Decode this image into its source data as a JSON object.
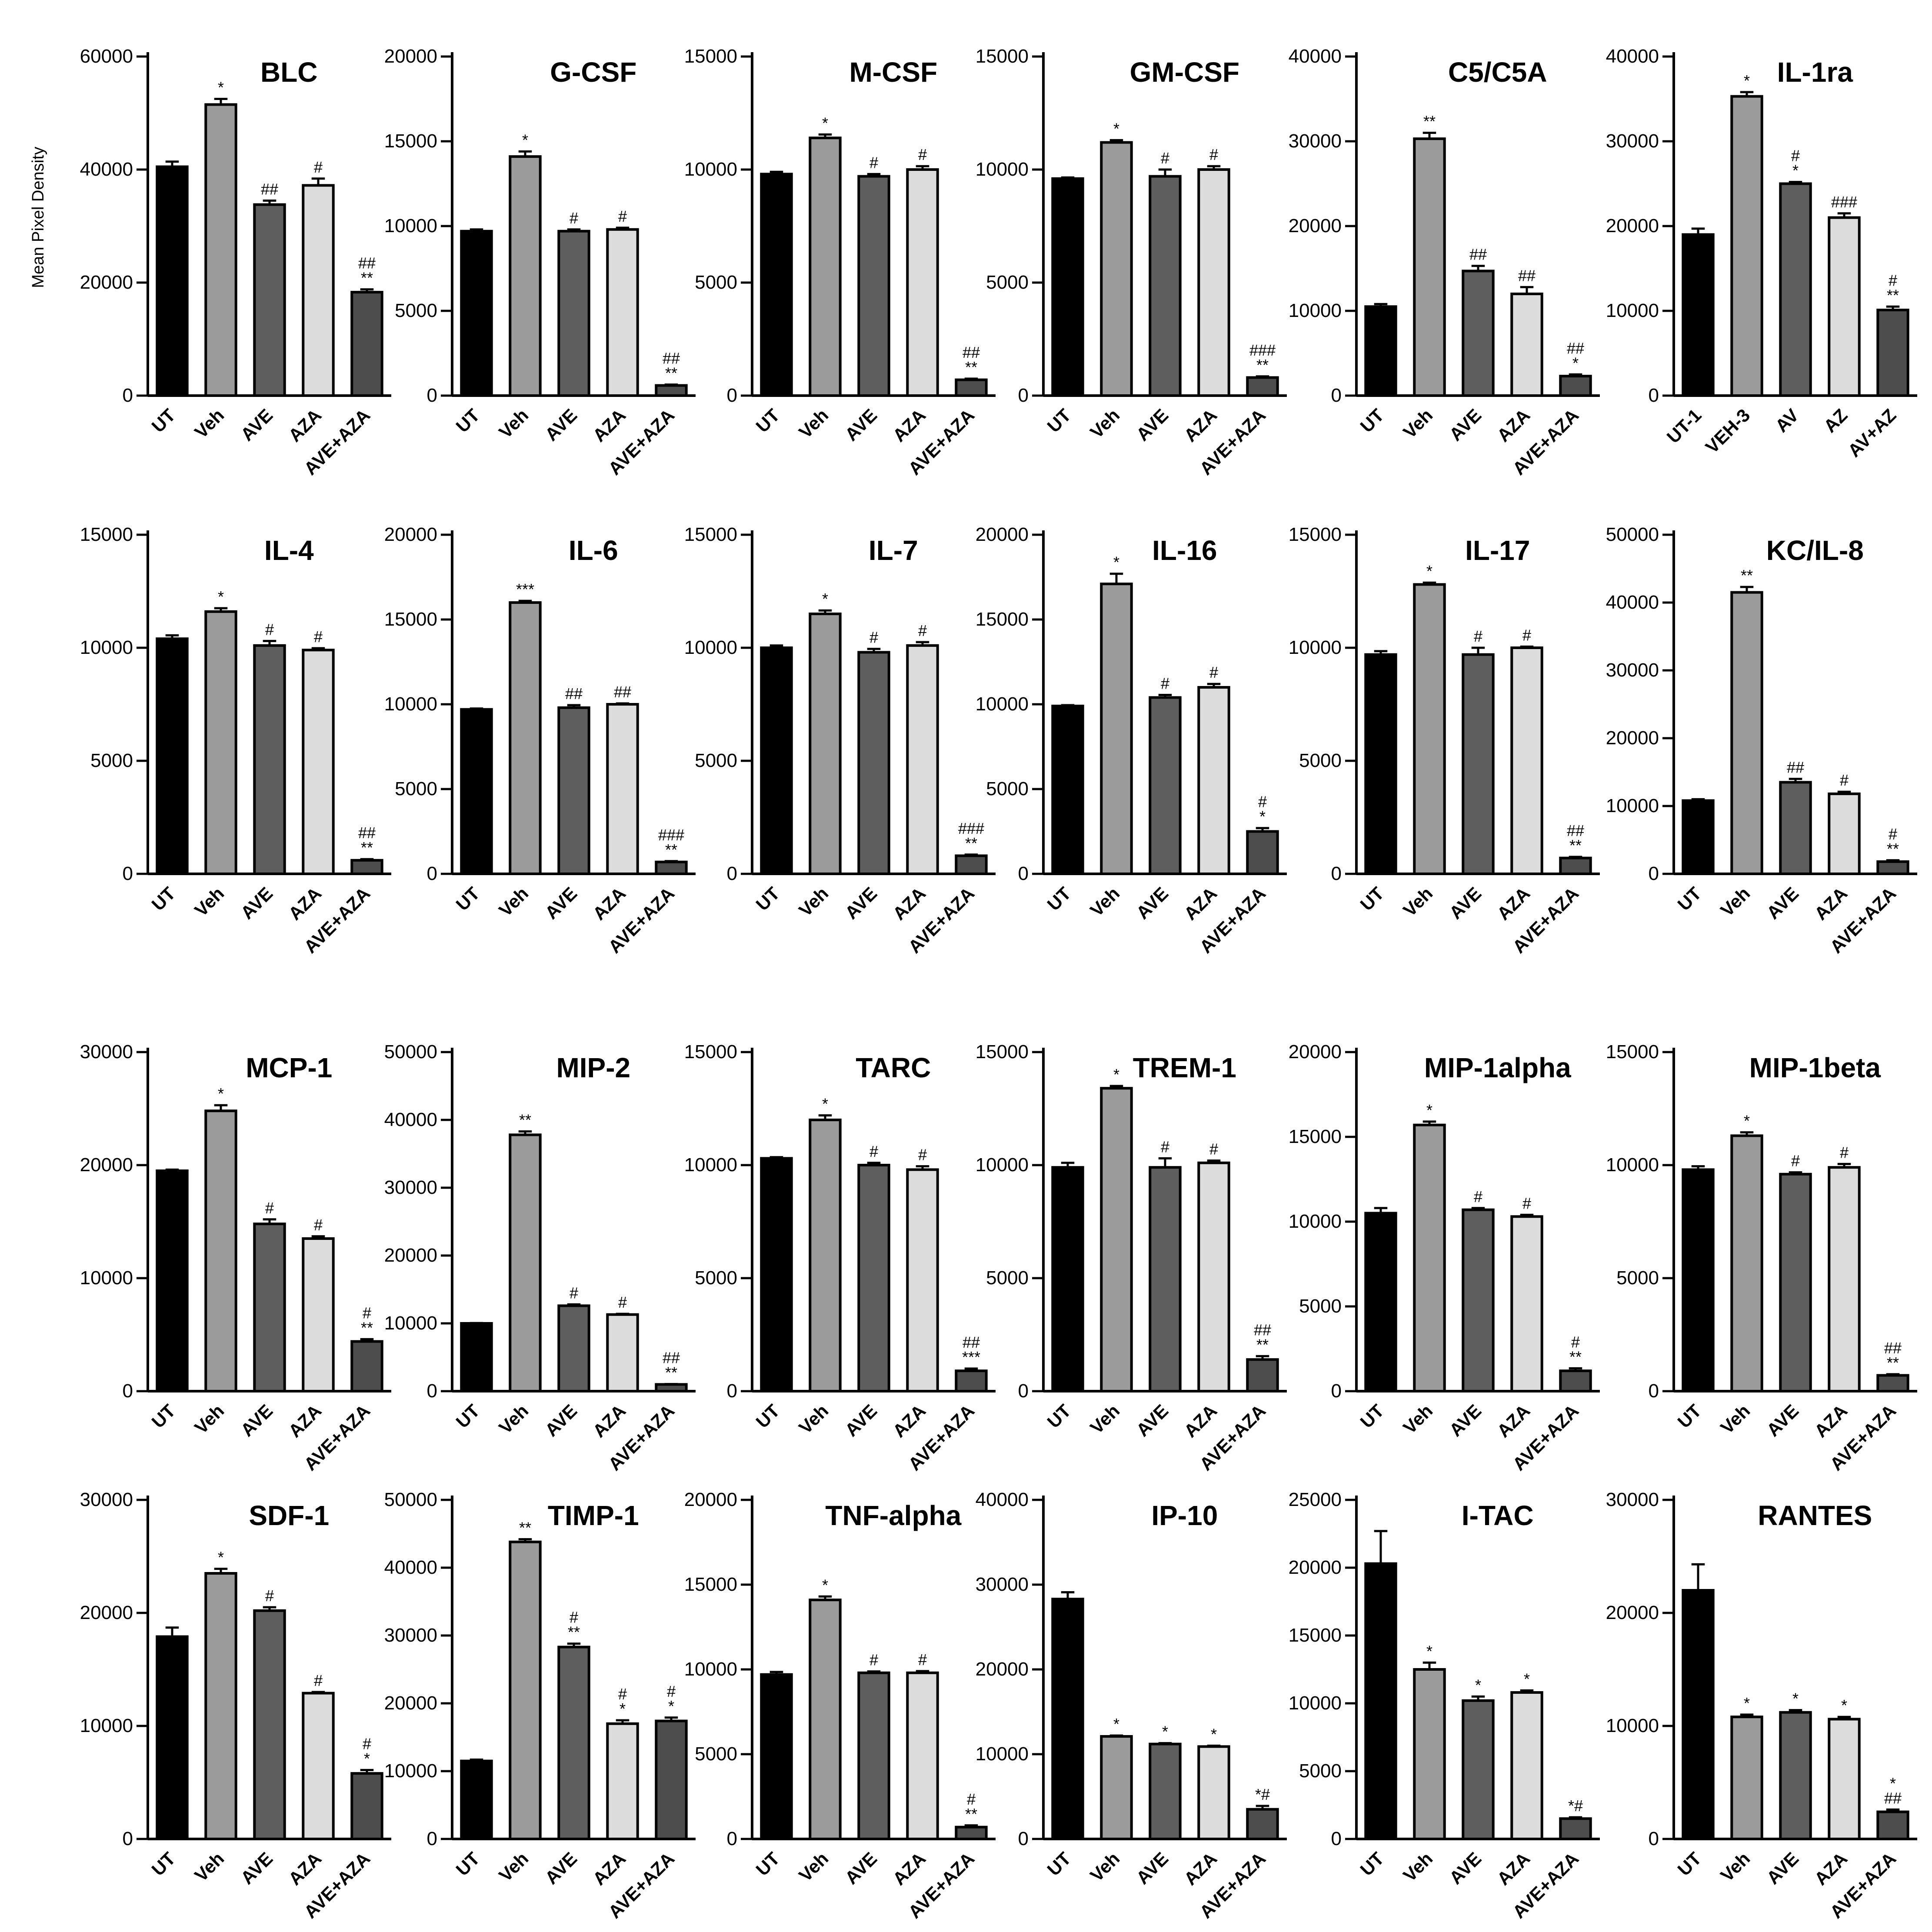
{
  "figure": {
    "ylabel": "Mean Pixel Density",
    "colors": {
      "bar_fills": [
        "#000000",
        "#9b9b9b",
        "#5e5e5e",
        "#dcdcdc",
        "#4d4d4d"
      ],
      "axis": "#000000"
    }
  },
  "chart_data": [
    {
      "type": "bar",
      "title": "BLC",
      "categories": [
        "UT",
        "Veh",
        "AVE",
        "AZA",
        "AVE+AZA"
      ],
      "values": [
        40500,
        51500,
        33800,
        37200,
        18300
      ],
      "errors": [
        900,
        1000,
        700,
        1200,
        500
      ],
      "sig": [
        "",
        "*",
        "##",
        "#",
        "##\n**"
      ],
      "yticks": [
        "0",
        "20000",
        "40000",
        "60000"
      ],
      "ylim": [
        0,
        60000
      ]
    },
    {
      "type": "bar",
      "title": "G-CSF",
      "categories": [
        "UT",
        "Veh",
        "AVE",
        "AZA",
        "AVE+AZA"
      ],
      "values": [
        9700,
        14100,
        9700,
        9800,
        600
      ],
      "errors": [
        100,
        300,
        100,
        100,
        50
      ],
      "sig": [
        "",
        "*",
        "#",
        "#",
        "##\n**"
      ],
      "yticks": [
        "0",
        "5000",
        "10000",
        "15000",
        "20000"
      ],
      "ylim": [
        0,
        20000
      ]
    },
    {
      "type": "bar",
      "title": "M-CSF",
      "categories": [
        "UT",
        "Veh",
        "AVE",
        "AZA",
        "AVE+AZA"
      ],
      "values": [
        9800,
        11400,
        9700,
        10000,
        700
      ],
      "errors": [
        100,
        150,
        100,
        150,
        50
      ],
      "sig": [
        "",
        "*",
        "#",
        "#",
        "##\n**"
      ],
      "yticks": [
        "0",
        "5000",
        "10000",
        "15000"
      ],
      "ylim": [
        0,
        15000
      ]
    },
    {
      "type": "bar",
      "title": "GM-CSF",
      "categories": [
        "UT",
        "Veh",
        "AVE",
        "AZA",
        "AVE+AZA"
      ],
      "values": [
        9600,
        11200,
        9700,
        10000,
        800
      ],
      "errors": [
        50,
        100,
        300,
        150,
        50
      ],
      "sig": [
        "",
        "*",
        "#",
        "#",
        "###\n**"
      ],
      "yticks": [
        "0",
        "5000",
        "10000",
        "15000"
      ],
      "ylim": [
        0,
        15000
      ]
    },
    {
      "type": "bar",
      "title": "C5/C5A",
      "categories": [
        "UT",
        "Veh",
        "AVE",
        "AZA",
        "AVE+AZA"
      ],
      "values": [
        10500,
        30300,
        14700,
        12000,
        2300
      ],
      "errors": [
        300,
        700,
        600,
        800,
        200
      ],
      "sig": [
        "",
        "**",
        "##",
        "##",
        "##\n*"
      ],
      "yticks": [
        "0",
        "10000",
        "20000",
        "30000",
        "40000"
      ],
      "ylim": [
        0,
        40000
      ]
    },
    {
      "type": "bar",
      "title": "IL-1ra",
      "categories": [
        "UT-1",
        "VEH-3",
        "AV",
        "AZ",
        "AV+AZ"
      ],
      "values": [
        19000,
        35300,
        25000,
        21000,
        10100
      ],
      "errors": [
        700,
        500,
        200,
        500,
        400
      ],
      "sig": [
        "",
        "*",
        "#\n*",
        "###",
        "#\n**"
      ],
      "yticks": [
        "0",
        "10000",
        "20000",
        "30000",
        "40000"
      ],
      "ylim": [
        0,
        40000
      ]
    },
    {
      "type": "bar",
      "title": "IL-4",
      "categories": [
        "UT",
        "Veh",
        "AVE",
        "AZA",
        "AVE+AZA"
      ],
      "values": [
        10400,
        11600,
        10100,
        9900,
        600
      ],
      "errors": [
        150,
        150,
        200,
        80,
        50
      ],
      "sig": [
        "",
        "*",
        "#",
        "#",
        "##\n**"
      ],
      "yticks": [
        "0",
        "5000",
        "10000",
        "15000"
      ],
      "ylim": [
        0,
        15000
      ]
    },
    {
      "type": "bar",
      "title": "IL-6",
      "categories": [
        "UT",
        "Veh",
        "AVE",
        "AZA",
        "AVE+AZA"
      ],
      "values": [
        9700,
        16000,
        9800,
        10000,
        700
      ],
      "errors": [
        50,
        100,
        150,
        50,
        50
      ],
      "sig": [
        "",
        "***",
        "##",
        "##",
        "###\n**"
      ],
      "yticks": [
        "0",
        "5000",
        "10000",
        "15000",
        "20000"
      ],
      "ylim": [
        0,
        20000
      ]
    },
    {
      "type": "bar",
      "title": "IL-7",
      "categories": [
        "UT",
        "Veh",
        "AVE",
        "AZA",
        "AVE+AZA"
      ],
      "values": [
        10000,
        11500,
        9800,
        10100,
        800
      ],
      "errors": [
        100,
        150,
        150,
        150,
        50
      ],
      "sig": [
        "",
        "*",
        "#",
        "#",
        "###\n**"
      ],
      "yticks": [
        "0",
        "5000",
        "10000",
        "15000"
      ],
      "ylim": [
        0,
        15000
      ]
    },
    {
      "type": "bar",
      "title": "IL-16",
      "categories": [
        "UT",
        "Veh",
        "AVE",
        "AZA",
        "AVE+AZA"
      ],
      "values": [
        9900,
        17100,
        10400,
        11000,
        2500
      ],
      "errors": [
        50,
        600,
        150,
        200,
        200
      ],
      "sig": [
        "",
        "*",
        "#",
        "#",
        "#\n*"
      ],
      "yticks": [
        "0",
        "5000",
        "10000",
        "15000",
        "20000"
      ],
      "ylim": [
        0,
        20000
      ]
    },
    {
      "type": "bar",
      "title": "IL-17",
      "categories": [
        "UT",
        "Veh",
        "AVE",
        "AZA",
        "AVE+AZA"
      ],
      "values": [
        9700,
        12800,
        9700,
        10000,
        700
      ],
      "errors": [
        150,
        80,
        300,
        50,
        50
      ],
      "sig": [
        "",
        "*",
        "#",
        "#",
        "##\n**"
      ],
      "yticks": [
        "0",
        "5000",
        "10000",
        "15000"
      ],
      "ylim": [
        0,
        15000
      ]
    },
    {
      "type": "bar",
      "title": "KC/IL-8",
      "categories": [
        "UT",
        "Veh",
        "AVE",
        "AZA",
        "AVE+AZA"
      ],
      "values": [
        10800,
        41500,
        13500,
        11800,
        1800
      ],
      "errors": [
        200,
        800,
        500,
        300,
        200
      ],
      "sig": [
        "",
        "**",
        "##",
        "#",
        "#\n**"
      ],
      "yticks": [
        "0",
        "10000",
        "20000",
        "30000",
        "40000",
        "50000"
      ],
      "ylim": [
        0,
        50000
      ]
    },
    {
      "type": "bar",
      "title": "MCP-1",
      "categories": [
        "UT",
        "Veh",
        "AVE",
        "AZA",
        "AVE+AZA"
      ],
      "values": [
        19500,
        24800,
        14800,
        13500,
        4400
      ],
      "errors": [
        100,
        500,
        400,
        200,
        200
      ],
      "sig": [
        "",
        "*",
        "#",
        "#",
        "#\n**"
      ],
      "yticks": [
        "0",
        "10000",
        "20000",
        "30000"
      ],
      "ylim": [
        0,
        30000
      ]
    },
    {
      "type": "bar",
      "title": "MIP-2",
      "categories": [
        "UT",
        "Veh",
        "AVE",
        "AZA",
        "AVE+AZA"
      ],
      "values": [
        10000,
        37800,
        12600,
        11300,
        1000
      ],
      "errors": [
        50,
        500,
        200,
        100,
        50
      ],
      "sig": [
        "",
        "**",
        "#",
        "#",
        "##\n**"
      ],
      "yticks": [
        "0",
        "10000",
        "20000",
        "30000",
        "40000",
        "50000"
      ],
      "ylim": [
        0,
        50000
      ]
    },
    {
      "type": "bar",
      "title": "TARC",
      "categories": [
        "UT",
        "Veh",
        "AVE",
        "AZA",
        "AVE+AZA"
      ],
      "values": [
        10300,
        12000,
        10000,
        9800,
        900
      ],
      "errors": [
        50,
        200,
        100,
        150,
        100
      ],
      "sig": [
        "",
        "*",
        "#",
        "#",
        "##\n***"
      ],
      "yticks": [
        "0",
        "5000",
        "10000",
        "15000"
      ],
      "ylim": [
        0,
        15000
      ]
    },
    {
      "type": "bar",
      "title": "TREM-1",
      "categories": [
        "UT",
        "Veh",
        "AVE",
        "AZA",
        "AVE+AZA"
      ],
      "values": [
        9900,
        13400,
        9900,
        10100,
        1400
      ],
      "errors": [
        200,
        100,
        400,
        100,
        150
      ],
      "sig": [
        "",
        "*",
        "#",
        "#",
        "##\n**"
      ],
      "yticks": [
        "0",
        "5000",
        "10000",
        "15000"
      ],
      "ylim": [
        0,
        15000
      ]
    },
    {
      "type": "bar",
      "title": "MIP-1alpha",
      "categories": [
        "UT",
        "Veh",
        "AVE",
        "AZA",
        "AVE+AZA"
      ],
      "values": [
        10500,
        15700,
        10700,
        10300,
        1200
      ],
      "errors": [
        300,
        200,
        100,
        100,
        150
      ],
      "sig": [
        "",
        "*",
        "#",
        "#",
        "#\n**"
      ],
      "yticks": [
        "0",
        "5000",
        "10000",
        "15000",
        "20000"
      ],
      "ylim": [
        0,
        20000
      ]
    },
    {
      "type": "bar",
      "title": "MIP-1beta",
      "categories": [
        "UT",
        "Veh",
        "AVE",
        "AZA",
        "AVE+AZA"
      ],
      "values": [
        9800,
        11300,
        9600,
        9900,
        700
      ],
      "errors": [
        150,
        150,
        80,
        150,
        50
      ],
      "sig": [
        "",
        "*",
        "#",
        "#",
        "##\n**"
      ],
      "yticks": [
        "0",
        "5000",
        "10000",
        "15000"
      ],
      "ylim": [
        0,
        15000
      ]
    },
    {
      "type": "bar",
      "title": "SDF-1",
      "categories": [
        "UT",
        "Veh",
        "AVE",
        "AZA",
        "AVE+AZA"
      ],
      "values": [
        17900,
        23500,
        20200,
        12900,
        5800
      ],
      "errors": [
        800,
        400,
        300,
        100,
        300
      ],
      "sig": [
        "",
        "*",
        "#",
        "#",
        "#\n*"
      ],
      "yticks": [
        "0",
        "10000",
        "20000",
        "30000"
      ],
      "ylim": [
        0,
        30000
      ]
    },
    {
      "type": "bar",
      "title": "TIMP-1",
      "categories": [
        "UT",
        "Veh",
        "AVE",
        "AZA",
        "AVE+AZA"
      ],
      "values": [
        11500,
        43800,
        28300,
        17000,
        17400
      ],
      "errors": [
        200,
        400,
        500,
        500,
        500
      ],
      "sig": [
        "",
        "**",
        "#\n**",
        "#\n*",
        "#\n*"
      ],
      "yticks": [
        "0",
        "10000",
        "20000",
        "30000",
        "40000",
        "50000"
      ],
      "ylim": [
        0,
        50000
      ]
    },
    {
      "type": "bar",
      "title": "TNF-alpha",
      "categories": [
        "UT",
        "Veh",
        "AVE",
        "AZA",
        "AVE+AZA"
      ],
      "values": [
        9700,
        14100,
        9800,
        9800,
        700
      ],
      "errors": [
        150,
        200,
        80,
        100,
        100
      ],
      "sig": [
        "",
        "*",
        "#",
        "#",
        "#\n**"
      ],
      "yticks": [
        "0",
        "5000",
        "10000",
        "15000",
        "20000"
      ],
      "ylim": [
        0,
        20000
      ]
    },
    {
      "type": "bar",
      "title": "IP-10",
      "categories": [
        "UT",
        "Veh",
        "AVE",
        "AZA",
        "AVE+AZA"
      ],
      "values": [
        28300,
        12100,
        11200,
        10900,
        3500
      ],
      "errors": [
        800,
        100,
        100,
        100,
        400
      ],
      "sig": [
        "",
        "*",
        "*",
        "*",
        "*#"
      ],
      "yticks": [
        "0",
        "10000",
        "20000",
        "30000",
        "40000"
      ],
      "ylim": [
        0,
        40000
      ]
    },
    {
      "type": "bar",
      "title": "I-TAC",
      "categories": [
        "UT",
        "Veh",
        "AVE",
        "AZA",
        "AVE+AZA"
      ],
      "values": [
        20300,
        12500,
        10200,
        10800,
        1500
      ],
      "errors": [
        2400,
        500,
        300,
        150,
        100
      ],
      "sig": [
        "",
        "*",
        "*",
        "*",
        "*#"
      ],
      "yticks": [
        "0",
        "5000",
        "10000",
        "15000",
        "20000",
        "25000"
      ],
      "ylim": [
        0,
        25000
      ]
    },
    {
      "type": "bar",
      "title": "RANTES",
      "categories": [
        "UT",
        "Veh",
        "AVE",
        "AZA",
        "AVE+AZA"
      ],
      "values": [
        22000,
        10800,
        11200,
        10600,
        2400
      ],
      "errors": [
        2300,
        200,
        200,
        200,
        200
      ],
      "sig": [
        "",
        "*",
        "*",
        "*",
        "*\n##"
      ],
      "yticks": [
        "0",
        "10000",
        "20000",
        "30000"
      ],
      "ylim": [
        0,
        30000
      ]
    }
  ]
}
